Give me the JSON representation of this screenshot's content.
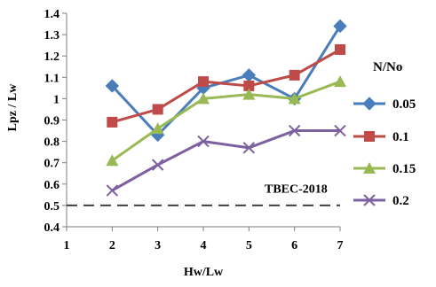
{
  "chart_data": {
    "type": "line",
    "title": "",
    "xlabel": "Hw/Lw",
    "ylabel": "Lpz  / Lw",
    "x_ticks": [
      1,
      2,
      3,
      4,
      5,
      6,
      7
    ],
    "y_ticks": [
      0.4,
      0.5,
      0.6,
      0.7,
      0.8,
      0.9,
      1,
      1.1,
      1.2,
      1.3,
      1.4
    ],
    "y_tick_labels": [
      "0.4",
      "0.5",
      "0.6",
      "0.7",
      "0.8",
      "0.9",
      "1",
      "1.1",
      "1.2",
      "1.3",
      "1.4"
    ],
    "xlim": [
      1,
      7
    ],
    "ylim": [
      0.4,
      1.4
    ],
    "grid": false,
    "legend": {
      "title": "N/No",
      "position": "right"
    },
    "x": [
      2,
      3,
      4,
      5,
      6,
      7
    ],
    "series": [
      {
        "name": "0.05",
        "values": [
          1.06,
          0.83,
          1.05,
          1.11,
          1.0,
          1.34
        ],
        "color": "#4a7ebb",
        "marker": "diamond"
      },
      {
        "name": "0.1",
        "values": [
          0.89,
          0.95,
          1.08,
          1.06,
          1.11,
          1.23
        ],
        "color": "#be4b48",
        "marker": "square"
      },
      {
        "name": "0.15",
        "values": [
          0.71,
          0.86,
          1.0,
          1.02,
          1.0,
          1.08
        ],
        "color": "#98b954",
        "marker": "triangle"
      },
      {
        "name": "0.2",
        "values": [
          0.57,
          0.69,
          0.8,
          0.77,
          0.85,
          0.85
        ],
        "color": "#7d60a0",
        "marker": "x"
      }
    ],
    "reference_line": {
      "label": "TBEC-2018",
      "y": 0.5,
      "color": "#404040",
      "style": "dashed"
    }
  }
}
